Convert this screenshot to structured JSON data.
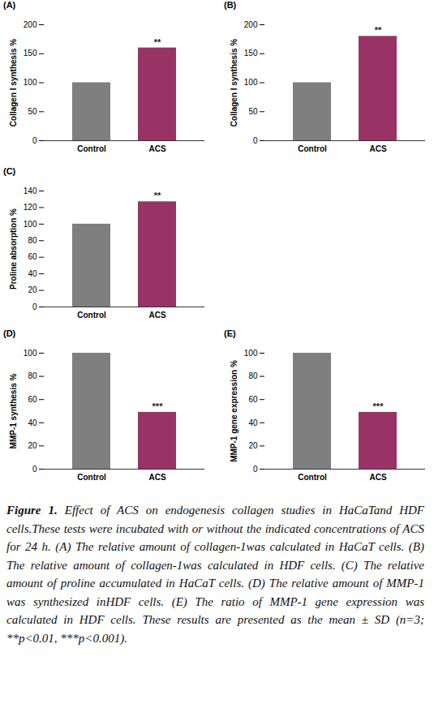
{
  "chart_data": [
    {
      "type": "bar",
      "title": "(A)",
      "y_label": "Collagen I synthesis %",
      "categories": [
        "Control",
        "ACS"
      ],
      "values": [
        100,
        160
      ],
      "colors": [
        "#7f7f7f",
        "#993366"
      ],
      "ylim": [
        0,
        200
      ],
      "yticks": [
        0,
        50,
        100,
        150,
        200
      ],
      "grid": false,
      "annotations": [
        {
          "x": "ACS",
          "text": "**"
        }
      ]
    },
    {
      "type": "bar",
      "title": "(B)",
      "y_label": "Collagen I synthesis %",
      "categories": [
        "Control",
        "ACS"
      ],
      "values": [
        100,
        180
      ],
      "colors": [
        "#7f7f7f",
        "#993366"
      ],
      "ylim": [
        0,
        200
      ],
      "yticks": [
        0,
        50,
        100,
        150,
        200
      ],
      "grid": false,
      "annotations": [
        {
          "x": "ACS",
          "text": "**"
        }
      ]
    },
    {
      "type": "bar",
      "title": "(C)",
      "y_label": "Proline absorption %",
      "categories": [
        "Control",
        "ACS"
      ],
      "values": [
        100,
        127
      ],
      "colors": [
        "#7f7f7f",
        "#993366"
      ],
      "ylim": [
        0,
        140
      ],
      "yticks": [
        0,
        20,
        40,
        60,
        80,
        100,
        120,
        140
      ],
      "grid": false,
      "annotations": [
        {
          "x": "ACS",
          "text": "**"
        }
      ]
    },
    {
      "type": "bar",
      "title": "(D)",
      "y_label": "MMP-1 synthesis %",
      "categories": [
        "Control",
        "ACS"
      ],
      "values": [
        100,
        49
      ],
      "colors": [
        "#7f7f7f",
        "#993366"
      ],
      "ylim": [
        0,
        100
      ],
      "yticks": [
        0,
        20,
        40,
        60,
        80,
        100
      ],
      "grid": false,
      "annotations": [
        {
          "x": "ACS",
          "text": "***"
        }
      ]
    },
    {
      "type": "bar",
      "title": "(E)",
      "y_label": "MMP-1 gene expression %",
      "categories": [
        "Control",
        "ACS"
      ],
      "values": [
        100,
        49
      ],
      "colors": [
        "#7f7f7f",
        "#993366"
      ],
      "ylim": [
        0,
        100
      ],
      "yticks": [
        0,
        20,
        40,
        60,
        80,
        100
      ],
      "grid": false,
      "annotations": [
        {
          "x": "ACS",
          "text": "***"
        }
      ]
    }
  ],
  "caption": {
    "label": "Figure 1.",
    "text": "Effect of ACS on endogenesis collagen studies in HaCaTand HDF cells.These tests were incubated with or without the indicated concentrations of ACS for 24 h. (A) The relative amount of collagen-1was calculated in HaCaT cells. (B) The relative amount of collagen-1was calculated in HDF cells. (C) The relative amount of proline accumulated in HaCaT cells. (D) The relative amount of MMP-1 was synthesized inHDF cells. (E) The ratio of MMP-1 gene expression was calculated in HDF cells. These results are presented as the mean ± SD (n=3; **p<0.01, ***p<0.001)."
  }
}
